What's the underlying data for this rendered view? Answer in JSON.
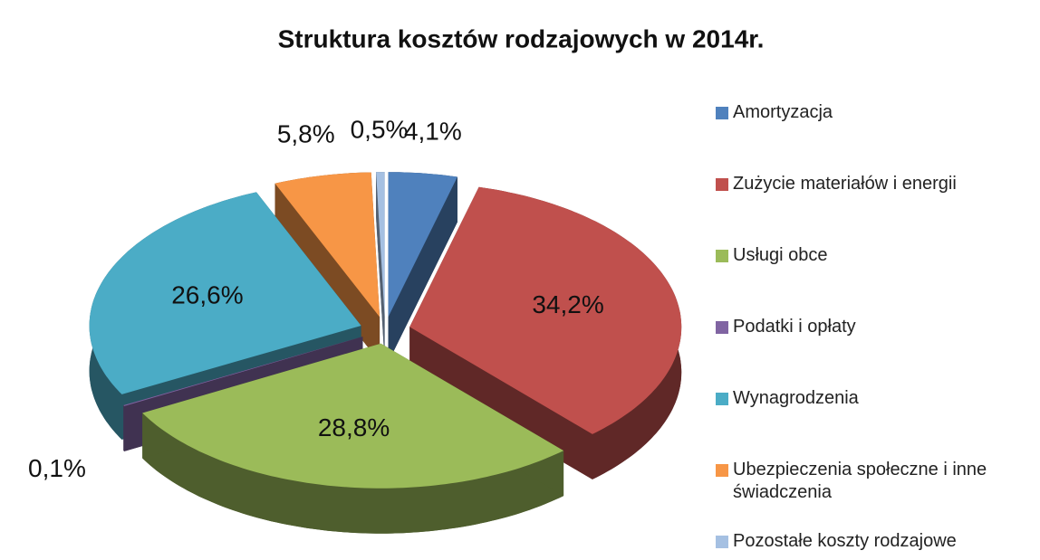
{
  "chart_data": {
    "type": "pie",
    "title": "Struktura kosztów rodzajowych w 2014r.",
    "categories": [
      "Amortyzacja",
      "Zużycie materiałów i energii",
      "Usługi obce",
      "Podatki  i opłaty",
      "Wynagrodzenia",
      "Ubezpieczenia społeczne i inne świadczenia",
      "Pozostałe koszty rodzajowe"
    ],
    "values": [
      4.1,
      34.2,
      28.8,
      0.1,
      26.6,
      5.8,
      0.5
    ],
    "value_labels": [
      "4,1%",
      "34,2%",
      "28,8%",
      "0,1%",
      "26,6%",
      "5,8%",
      "0,5%"
    ],
    "colors": [
      "#4f81bd",
      "#c0504d",
      "#9bbb59",
      "#8064a2",
      "#4bacc6",
      "#f79646",
      "#a5c0e2"
    ],
    "legend": "right"
  }
}
